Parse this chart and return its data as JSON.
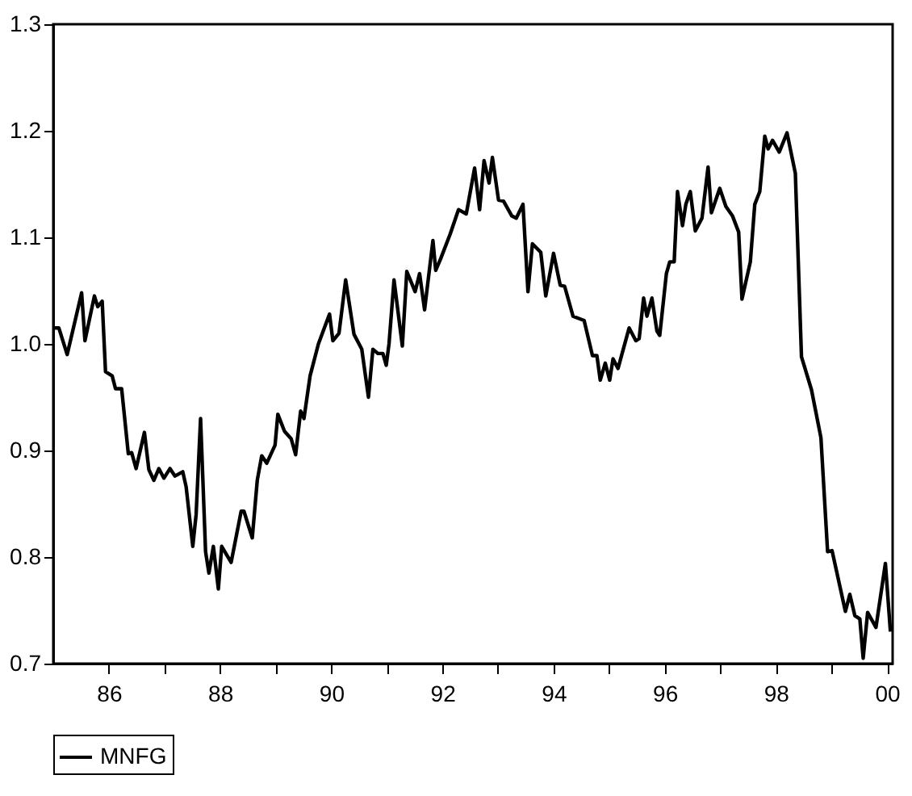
{
  "chart_data": {
    "type": "line",
    "series": [
      {
        "name": "MNFG",
        "color": "#000000",
        "x": [
          1985.0,
          1985.1,
          1985.25,
          1985.51,
          1985.57,
          1985.74,
          1985.8,
          1985.88,
          1985.94,
          1986.06,
          1986.12,
          1986.23,
          1986.35,
          1986.41,
          1986.49,
          1986.64,
          1986.72,
          1986.81,
          1986.9,
          1986.99,
          1987.1,
          1987.19,
          1987.33,
          1987.39,
          1987.51,
          1987.57,
          1987.65,
          1987.74,
          1987.8,
          1987.88,
          1987.97,
          1988.03,
          1988.2,
          1988.38,
          1988.43,
          1988.58,
          1988.67,
          1988.75,
          1988.84,
          1988.99,
          1989.04,
          1989.16,
          1989.28,
          1989.36,
          1989.45,
          1989.51,
          1989.62,
          1989.77,
          1989.97,
          1990.03,
          1990.14,
          1990.26,
          1990.41,
          1990.55,
          1990.67,
          1990.75,
          1990.84,
          1990.93,
          1990.99,
          1991.04,
          1991.13,
          1991.28,
          1991.36,
          1991.51,
          1991.59,
          1991.68,
          1991.83,
          1991.88,
          1991.97,
          1992.14,
          1992.29,
          1992.43,
          1992.58,
          1992.67,
          1992.75,
          1992.84,
          1992.9,
          1993.01,
          1993.1,
          1993.25,
          1993.33,
          1993.45,
          1993.54,
          1993.62,
          1993.77,
          1993.86,
          1994.0,
          1994.12,
          1994.2,
          1994.35,
          1994.55,
          1994.7,
          1994.78,
          1994.84,
          1994.93,
          1995.01,
          1995.07,
          1995.16,
          1995.36,
          1995.48,
          1995.54,
          1995.62,
          1995.68,
          1995.77,
          1995.86,
          1995.91,
          1996.03,
          1996.09,
          1996.17,
          1996.23,
          1996.32,
          1996.38,
          1996.46,
          1996.55,
          1996.67,
          1996.78,
          1996.84,
          1996.99,
          1997.1,
          1997.22,
          1997.33,
          1997.39,
          1997.54,
          1997.62,
          1997.71,
          1997.8,
          1997.86,
          1997.94,
          1998.06,
          1998.2,
          1998.35,
          1998.46,
          1998.64,
          1998.81,
          1998.93,
          1999.01,
          1999.25,
          1999.33,
          1999.42,
          1999.51,
          1999.57,
          1999.65,
          1999.8,
          1999.97,
          2000.06
        ],
        "values": [
          1.015,
          1.015,
          0.99,
          1.048,
          1.003,
          1.045,
          1.035,
          1.04,
          0.974,
          0.97,
          0.958,
          0.958,
          0.897,
          0.898,
          0.883,
          0.917,
          0.882,
          0.872,
          0.883,
          0.874,
          0.883,
          0.876,
          0.88,
          0.866,
          0.81,
          0.84,
          0.93,
          0.805,
          0.785,
          0.81,
          0.77,
          0.81,
          0.795,
          0.843,
          0.843,
          0.818,
          0.872,
          0.895,
          0.888,
          0.905,
          0.934,
          0.918,
          0.911,
          0.896,
          0.937,
          0.93,
          0.97,
          1.0,
          1.028,
          1.003,
          1.01,
          1.06,
          1.009,
          0.995,
          0.95,
          0.995,
          0.991,
          0.991,
          0.98,
          1.0,
          1.06,
          0.998,
          1.068,
          1.049,
          1.066,
          1.032,
          1.097,
          1.069,
          1.08,
          1.103,
          1.126,
          1.122,
          1.165,
          1.126,
          1.172,
          1.151,
          1.175,
          1.135,
          1.134,
          1.12,
          1.118,
          1.131,
          1.049,
          1.094,
          1.086,
          1.045,
          1.085,
          1.055,
          1.054,
          1.026,
          1.022,
          0.989,
          0.989,
          0.966,
          0.982,
          0.966,
          0.986,
          0.977,
          1.015,
          1.003,
          1.005,
          1.043,
          1.026,
          1.043,
          1.012,
          1.008,
          1.066,
          1.077,
          1.077,
          1.143,
          1.111,
          1.131,
          1.143,
          1.106,
          1.118,
          1.166,
          1.123,
          1.146,
          1.129,
          1.12,
          1.105,
          1.042,
          1.077,
          1.131,
          1.143,
          1.195,
          1.183,
          1.191,
          1.18,
          1.198,
          1.16,
          0.988,
          0.957,
          0.912,
          0.805,
          0.806,
          0.749,
          0.765,
          0.745,
          0.742,
          0.705,
          0.748,
          0.734,
          0.794,
          0.73
        ]
      }
    ],
    "xlim": [
      1985,
      2000.1
    ],
    "xticks": [
      {
        "value": 1986,
        "label": "86"
      },
      {
        "value": 1987,
        "label": null
      },
      {
        "value": 1988,
        "label": "88"
      },
      {
        "value": 1989,
        "label": null
      },
      {
        "value": 1990,
        "label": "90"
      },
      {
        "value": 1991,
        "label": null
      },
      {
        "value": 1992,
        "label": "92"
      },
      {
        "value": 1993,
        "label": null
      },
      {
        "value": 1994,
        "label": "94"
      },
      {
        "value": 1995,
        "label": null
      },
      {
        "value": 1996,
        "label": "96"
      },
      {
        "value": 1997,
        "label": null
      },
      {
        "value": 1998,
        "label": "98"
      },
      {
        "value": 1999,
        "label": null
      },
      {
        "value": 2000,
        "label": "00"
      }
    ],
    "ylim": [
      0.7,
      1.3
    ],
    "yticks": [
      {
        "value": 0.7,
        "label": "0.7"
      },
      {
        "value": 0.8,
        "label": "0.8"
      },
      {
        "value": 0.9,
        "label": "0.9"
      },
      {
        "value": 1.0,
        "label": "1.0"
      },
      {
        "value": 1.1,
        "label": "1.1"
      },
      {
        "value": 1.2,
        "label": "1.2"
      },
      {
        "value": 1.3,
        "label": "1.3"
      }
    ],
    "grid": false,
    "legend": "bottom",
    "marker": "none",
    "line_style": "solid"
  }
}
